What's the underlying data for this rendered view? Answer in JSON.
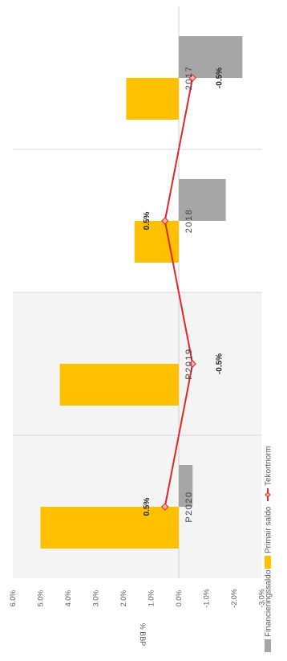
{
  "chart_data": {
    "type": "bar",
    "orientation": "rotated 90° clockwise (value axis runs horizontally, categories run vertically)",
    "categories": [
      "2017",
      "2018",
      "P2019",
      "P2020"
    ],
    "shaded_categories": [
      "P2019",
      "P2020"
    ],
    "series": [
      {
        "name": "Financieringssaldo",
        "kind": "bar",
        "color": "#a6a6a6",
        "values": [
          -2.3,
          -1.7,
          null,
          -0.5
        ]
      },
      {
        "name": "Primair saldo",
        "kind": "bar",
        "color": "#ffc000",
        "values": [
          1.9,
          1.6,
          4.3,
          5.0
        ]
      },
      {
        "name": "Tekortnorm",
        "kind": "line",
        "color": "#e3262b",
        "values": [
          -0.5,
          0.5,
          -0.5,
          0.5
        ]
      }
    ],
    "data_labels": [
      {
        "series": "Tekortnorm",
        "category": "2017",
        "text": "-0.5%"
      },
      {
        "series": "Tekortnorm",
        "category": "2018",
        "text": "0.5%"
      },
      {
        "series": "Tekortnorm",
        "category": "P2019",
        "text": "-0.5%"
      },
      {
        "series": "Tekortnorm",
        "category": "P2020",
        "text": "0.5%"
      }
    ],
    "ylabel": "% BBP",
    "ylim": [
      -3.0,
      6.0
    ],
    "yticks": [
      "6.0%",
      "5.0%",
      "4.0%",
      "3.0%",
      "2.0%",
      "1.0%",
      "0.0%",
      "-1.0%",
      "-2.0%",
      "-3.0%"
    ],
    "ytick_values": [
      6,
      5,
      4,
      3,
      2,
      1,
      0,
      -1,
      -2,
      -3
    ],
    "legend_position": "bottom",
    "grid": true
  }
}
